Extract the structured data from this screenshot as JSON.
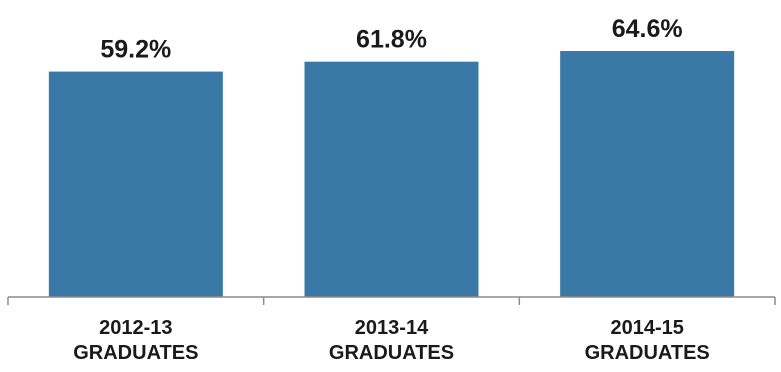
{
  "chart_data": {
    "type": "bar",
    "categories": [
      [
        "2012-13",
        "GRADUATES"
      ],
      [
        "2013-14",
        "GRADUATES"
      ],
      [
        "2014-15",
        "GRADUATES"
      ]
    ],
    "values": [
      59.2,
      61.8,
      64.6
    ],
    "data_labels": [
      "59.2%",
      "61.8%",
      "64.6%"
    ],
    "title": "",
    "xlabel": "",
    "ylabel": "",
    "ylim": [
      0,
      78
    ],
    "grid": false,
    "legend": "none",
    "bar_color": "#3a79a6",
    "axis_color": "#8c8c8c"
  }
}
